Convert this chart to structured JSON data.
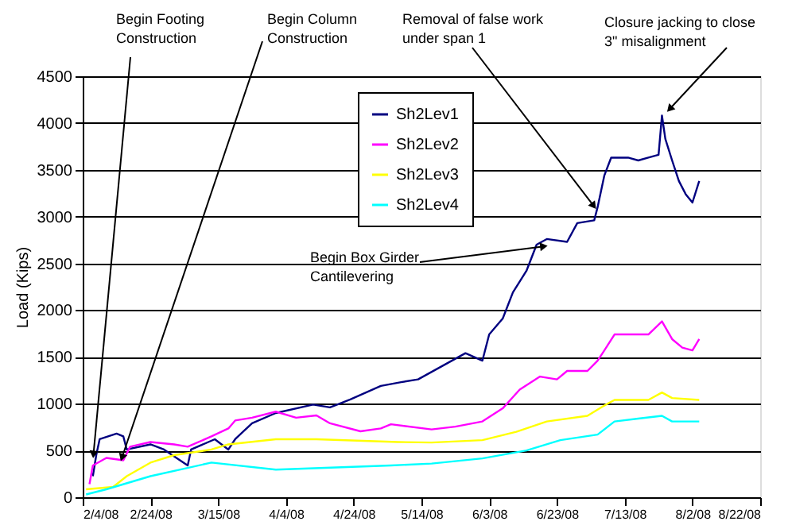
{
  "chart_data": {
    "type": "line",
    "ylabel": "Load (Kips)",
    "xlim": [
      "2008-02-04",
      "2008-08-22"
    ],
    "xticks": [
      {
        "value": "2008-02-04",
        "label": "2/4/08"
      },
      {
        "value": "2008-02-24",
        "label": "2/24/08"
      },
      {
        "value": "2008-03-15",
        "label": "3/15/08"
      },
      {
        "value": "2008-04-04",
        "label": "4/4/08"
      },
      {
        "value": "2008-04-24",
        "label": "4/24/08"
      },
      {
        "value": "2008-05-14",
        "label": "5/14/08"
      },
      {
        "value": "2008-06-03",
        "label": "6/3/08"
      },
      {
        "value": "2008-06-23",
        "label": "6/23/08"
      },
      {
        "value": "2008-07-13",
        "label": "7/13/08"
      },
      {
        "value": "2008-08-02",
        "label": "8/2/08"
      },
      {
        "value": "2008-08-22",
        "label": "8/22/08"
      }
    ],
    "ylim": [
      0,
      4500
    ],
    "yticks": [
      0,
      500,
      1000,
      1500,
      2000,
      2500,
      3000,
      3500,
      4000,
      4500
    ],
    "grid": "y",
    "legend": "top",
    "marker": "none",
    "line_style": "solid",
    "annotations": [
      {
        "text": "Begin Footing\nConstruction",
        "x": "2008-02-07",
        "y": 390
      },
      {
        "text": "Begin Column\nConstruction",
        "x": "2008-02-15",
        "y": 360
      },
      {
        "text": "Begin Box Girder\nCantilevering",
        "x": "2008-06-21",
        "y": 2690
      },
      {
        "text": "Removal of false work\nunder span 1",
        "x": "2008-07-05",
        "y": 3060
      },
      {
        "text": "Closure jacking to close\n3\" misalignment",
        "x": "2008-07-25",
        "y": 4100
      }
    ],
    "series": [
      {
        "name": "Sh2Lev1",
        "color": "#000080",
        "x": [
          "2008-02-07",
          "2008-02-08",
          "2008-02-09",
          "2008-02-14",
          "2008-02-16",
          "2008-02-17",
          "2008-02-24",
          "2008-02-28",
          "2008-03-06",
          "2008-03-07",
          "2008-03-14",
          "2008-03-18",
          "2008-03-20",
          "2008-03-25",
          "2008-04-01",
          "2008-04-12",
          "2008-04-17",
          "2008-04-23",
          "2008-05-02",
          "2008-05-08",
          "2008-05-13",
          "2008-05-20",
          "2008-05-27",
          "2008-06-01",
          "2008-06-03",
          "2008-06-07",
          "2008-06-10",
          "2008-06-14",
          "2008-06-17",
          "2008-06-20",
          "2008-06-26",
          "2008-06-29",
          "2008-07-04",
          "2008-07-05",
          "2008-07-07",
          "2008-07-09",
          "2008-07-14",
          "2008-07-17",
          "2008-07-20",
          "2008-07-23",
          "2008-07-24",
          "2008-07-25",
          "2008-07-27",
          "2008-07-29",
          "2008-07-31",
          "2008-08-02",
          "2008-08-04"
        ],
        "values": [
          225,
          450,
          620,
          680,
          650,
          510,
          565,
          510,
          340,
          510,
          620,
          510,
          620,
          790,
          900,
          990,
          960,
          1045,
          1190,
          1230,
          1260,
          1400,
          1540,
          1460,
          1740,
          1910,
          2190,
          2420,
          2700,
          2760,
          2730,
          2930,
          2960,
          3100,
          3440,
          3630,
          3630,
          3600,
          3630,
          3660,
          4080,
          3830,
          3600,
          3380,
          3240,
          3150,
          3380
        ]
      },
      {
        "name": "Sh2Lev2",
        "color": "#ff00ff",
        "x": [
          "2008-02-06",
          "2008-02-07",
          "2008-02-11",
          "2008-02-16",
          "2008-02-18",
          "2008-02-24",
          "2008-03-02",
          "2008-03-06",
          "2008-03-13",
          "2008-03-18",
          "2008-03-20",
          "2008-03-25",
          "2008-04-01",
          "2008-04-07",
          "2008-04-13",
          "2008-04-17",
          "2008-04-26",
          "2008-05-02",
          "2008-05-05",
          "2008-05-17",
          "2008-05-24",
          "2008-06-01",
          "2008-06-07",
          "2008-06-12",
          "2008-06-18",
          "2008-06-23",
          "2008-06-26",
          "2008-07-02",
          "2008-07-05",
          "2008-07-07",
          "2008-07-10",
          "2008-07-17",
          "2008-07-20",
          "2008-07-24",
          "2008-07-27",
          "2008-07-30",
          "2008-08-02",
          "2008-08-04"
        ],
        "values": [
          140,
          340,
          420,
          395,
          540,
          590,
          565,
          540,
          650,
          735,
          820,
          850,
          915,
          850,
          875,
          790,
          705,
          735,
          780,
          725,
          755,
          810,
          950,
          1150,
          1290,
          1260,
          1350,
          1350,
          1460,
          1570,
          1740,
          1740,
          1740,
          1880,
          1690,
          1600,
          1570,
          1690
        ]
      },
      {
        "name": "Sh2Lev3",
        "color": "#ffff00",
        "x": [
          "2008-02-05",
          "2008-02-13",
          "2008-02-17",
          "2008-02-24",
          "2008-03-02",
          "2008-03-13",
          "2008-03-18",
          "2008-04-01",
          "2008-04-13",
          "2008-05-07",
          "2008-05-17",
          "2008-06-01",
          "2008-06-11",
          "2008-06-20",
          "2008-07-02",
          "2008-07-07",
          "2008-07-10",
          "2008-07-20",
          "2008-07-24",
          "2008-07-27",
          "2008-08-04"
        ],
        "values": [
          85,
          110,
          225,
          370,
          450,
          510,
          565,
          620,
          620,
          590,
          585,
          610,
          700,
          810,
          870,
          980,
          1040,
          1040,
          1120,
          1060,
          1040
        ]
      },
      {
        "name": "Sh2Lev4",
        "color": "#00ffff",
        "x": [
          "2008-02-05",
          "2008-02-11",
          "2008-02-24",
          "2008-03-13",
          "2008-04-01",
          "2008-05-05",
          "2008-05-17",
          "2008-06-01",
          "2008-06-14",
          "2008-06-24",
          "2008-07-05",
          "2008-07-10",
          "2008-07-17",
          "2008-07-24",
          "2008-07-27",
          "2008-08-04"
        ],
        "values": [
          30,
          85,
          225,
          370,
          295,
          340,
          360,
          415,
          500,
          610,
          670,
          810,
          840,
          870,
          810,
          810
        ]
      }
    ]
  }
}
